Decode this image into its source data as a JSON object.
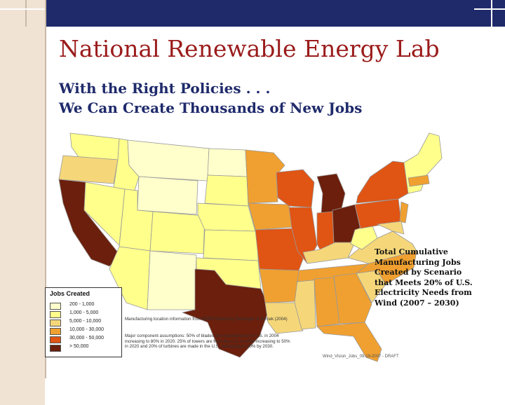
{
  "slide": {
    "title": "National Renewable Energy Lab",
    "subtitle_line1": "With the Right Policies . . .",
    "subtitle_line2": "We Can Create Thousands of New Jobs"
  },
  "caption": "Total Cumulative Manufacturing Jobs Created by Scenario that Meets 20% of U.S. Electricity Needs from Wind (2007 – 2030)",
  "legend": {
    "title": "Jobs Created",
    "items": [
      {
        "label": "200 - 1,000",
        "color": "#ffffcc"
      },
      {
        "label": "1,000 - 5,000",
        "color": "#ffff8c"
      },
      {
        "label": "5,000 - 10,000",
        "color": "#f5d77a"
      },
      {
        "label": "10,000 - 30,000",
        "color": "#f0a030"
      },
      {
        "label": "30,000 - 50,000",
        "color": "#e05414"
      },
      {
        "label": "> 50,000",
        "color": "#6b1f0c"
      }
    ]
  },
  "notes": {
    "source": "Manufacturing location information from REPP Report by Sterzinger & Svrcek (2004)",
    "assumption": "Major component assumptions: 50% of blades are manufactured in U.S. in 2004 increasing to 80% in 2020. 25% of towers are from the U.S. in 2004 increasing to 50% in 2020 and 20% of turbines are made in the U.S. increasing to 40% by 2030."
  },
  "stamp": "Wind_Vision_Jobs_09-19-2007 - DRAFT",
  "colors": {
    "title": "#9b1c1c",
    "subtitle": "#1f2a6b",
    "top_bar": "#1f2a6b",
    "left_band": "#f1e3d3"
  }
}
